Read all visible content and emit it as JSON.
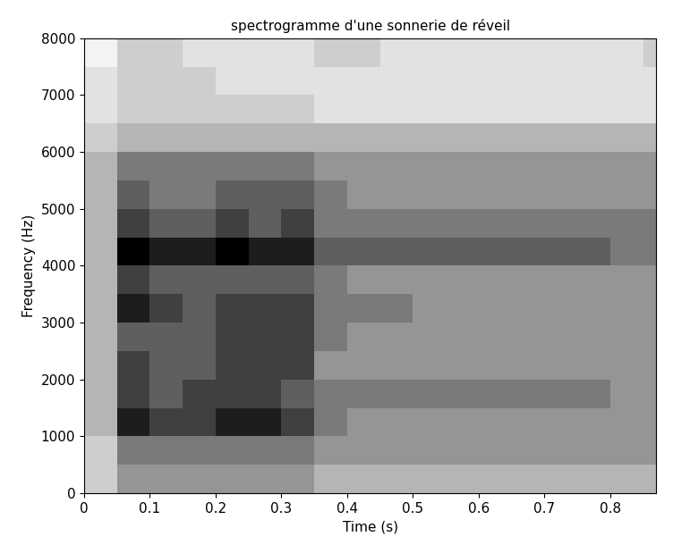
{
  "chart_data": {
    "type": "heatmap",
    "title": "spectrogramme d'une sonnerie de réveil",
    "x_label": "Time (s)",
    "y_label": "Frequency (Hz)",
    "xlim": [
      0,
      0.87
    ],
    "xticks": [
      0,
      0.1,
      0.2,
      0.3,
      0.4,
      0.5,
      0.6,
      0.7,
      0.8
    ],
    "ylim": [
      0,
      8000
    ],
    "yticks": [
      0,
      1000,
      2000,
      3000,
      4000,
      5000,
      6000,
      7000,
      8000
    ],
    "x_edges": [
      0,
      0.05,
      0.1,
      0.15,
      0.2,
      0.25,
      0.3,
      0.35,
      0.4,
      0.45,
      0.5,
      0.55,
      0.6,
      0.65,
      0.7,
      0.75,
      0.8,
      0.85,
      0.87
    ],
    "y_edges": [
      0,
      500,
      1000,
      1500,
      2000,
      2500,
      3000,
      3500,
      4000,
      4500,
      5000,
      5500,
      6000,
      6500,
      7000,
      7500,
      8000
    ],
    "clim": [
      0,
      10
    ],
    "cells": [
      [
        3,
        5,
        5,
        5,
        5,
        5,
        5,
        4,
        4,
        4,
        4,
        4,
        4,
        4,
        4,
        4,
        4,
        4
      ],
      [
        3,
        6,
        6,
        6,
        6,
        6,
        6,
        5,
        5,
        5,
        5,
        5,
        5,
        5,
        5,
        5,
        5,
        5
      ],
      [
        4,
        9,
        8,
        8,
        9,
        9,
        8,
        6,
        5,
        5,
        5,
        5,
        5,
        5,
        5,
        5,
        5,
        5
      ],
      [
        4,
        8,
        7,
        8,
        8,
        8,
        7,
        6,
        6,
        6,
        6,
        6,
        6,
        6,
        6,
        6,
        5,
        5
      ],
      [
        4,
        8,
        7,
        7,
        8,
        8,
        8,
        5,
        5,
        5,
        5,
        5,
        5,
        5,
        5,
        5,
        5,
        5
      ],
      [
        4,
        7,
        7,
        7,
        8,
        8,
        8,
        6,
        5,
        5,
        5,
        5,
        5,
        5,
        5,
        5,
        5,
        5
      ],
      [
        4,
        9,
        8,
        7,
        8,
        8,
        8,
        6,
        6,
        6,
        5,
        5,
        5,
        5,
        5,
        5,
        5,
        5
      ],
      [
        4,
        8,
        7,
        7,
        7,
        7,
        7,
        6,
        5,
        5,
        5,
        5,
        5,
        5,
        5,
        5,
        5,
        5
      ],
      [
        4,
        10,
        9,
        9,
        10,
        9,
        9,
        7,
        7,
        7,
        7,
        7,
        7,
        7,
        7,
        7,
        6,
        6
      ],
      [
        4,
        8,
        7,
        7,
        8,
        7,
        8,
        6,
        6,
        6,
        6,
        6,
        6,
        6,
        6,
        6,
        6,
        6
      ],
      [
        4,
        7,
        6,
        6,
        7,
        7,
        7,
        6,
        5,
        5,
        5,
        5,
        5,
        5,
        5,
        5,
        5,
        5
      ],
      [
        4,
        6,
        6,
        6,
        6,
        6,
        6,
        5,
        5,
        5,
        5,
        5,
        5,
        5,
        5,
        5,
        5,
        5
      ],
      [
        3,
        4,
        4,
        4,
        4,
        4,
        4,
        4,
        4,
        4,
        4,
        4,
        4,
        4,
        4,
        4,
        4,
        4
      ],
      [
        2,
        3,
        3,
        3,
        3,
        3,
        3,
        2,
        2,
        2,
        2,
        2,
        2,
        2,
        2,
        2,
        2,
        2
      ],
      [
        2,
        3,
        3,
        3,
        2,
        2,
        2,
        2,
        2,
        2,
        2,
        2,
        2,
        2,
        2,
        2,
        2,
        2
      ],
      [
        1,
        3,
        3,
        2,
        2,
        2,
        2,
        3,
        3,
        2,
        2,
        2,
        2,
        2,
        2,
        2,
        2,
        3
      ]
    ]
  }
}
